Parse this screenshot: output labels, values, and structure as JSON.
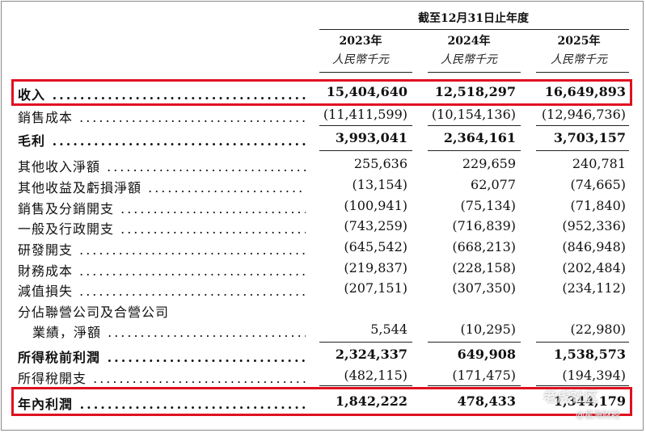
{
  "header": {
    "period": "截至12月31日止年度",
    "years": [
      "2023年",
      "2024年",
      "2025年"
    ],
    "units": [
      "人民幣千元",
      "人民幣千元",
      "人民幣千元"
    ]
  },
  "rows": [
    {
      "label": "收入",
      "values": [
        "15,404,640",
        "12,518,297",
        "16,649,893"
      ],
      "bold": true,
      "highlight": true
    },
    {
      "label": "銷售成本",
      "values": [
        "(11,411,599)",
        "(10,154,136)",
        "(12,946,736)"
      ]
    },
    {
      "label": "毛利",
      "values": [
        "3,993,041",
        "2,364,161",
        "3,703,157"
      ],
      "bold": true
    },
    {
      "label": "其他收入淨額",
      "values": [
        "255,636",
        "229,659",
        "240,781"
      ]
    },
    {
      "label": "其他收益及虧損淨額",
      "values": [
        "(13,154)",
        "62,077",
        "(74,665)"
      ]
    },
    {
      "label": "銷售及分銷開支",
      "values": [
        "(100,941)",
        "(75,134)",
        "(71,840)"
      ]
    },
    {
      "label": "一般及行政開支",
      "values": [
        "(743,259)",
        "(716,839)",
        "(952,336)"
      ]
    },
    {
      "label": "研發開支",
      "values": [
        "(645,542)",
        "(668,213)",
        "(846,948)"
      ]
    },
    {
      "label": "財務成本",
      "values": [
        "(219,837)",
        "(228,158)",
        "(202,484)"
      ]
    },
    {
      "label": "減值損失",
      "values": [
        "(207,151)",
        "(307,350)",
        "(234,112)"
      ]
    },
    {
      "label": "分佔聯營公司及合營公司",
      "values": [
        "",
        "",
        ""
      ],
      "nodots": true
    },
    {
      "label": "業績，淨額",
      "values": [
        "5,544",
        "(10,295)",
        "(22,980)"
      ],
      "indent": true
    },
    {
      "label": "所得稅前利潤",
      "values": [
        "2,324,337",
        "649,908",
        "1,538,573"
      ],
      "bold": true
    },
    {
      "label": "所得稅開支",
      "values": [
        "(482,115)",
        "(171,475)",
        "(194,394)"
      ]
    },
    {
      "label": "年內利潤",
      "values": [
        "1,842,222",
        "478,433",
        "1,344,179"
      ],
      "bold": true,
      "highlight": true
    }
  ],
  "watermark": {
    "line1": "老虎社区",
    "line2": "@星海财经"
  },
  "colors": {
    "highlight": "#e01020",
    "text": "#111111"
  }
}
